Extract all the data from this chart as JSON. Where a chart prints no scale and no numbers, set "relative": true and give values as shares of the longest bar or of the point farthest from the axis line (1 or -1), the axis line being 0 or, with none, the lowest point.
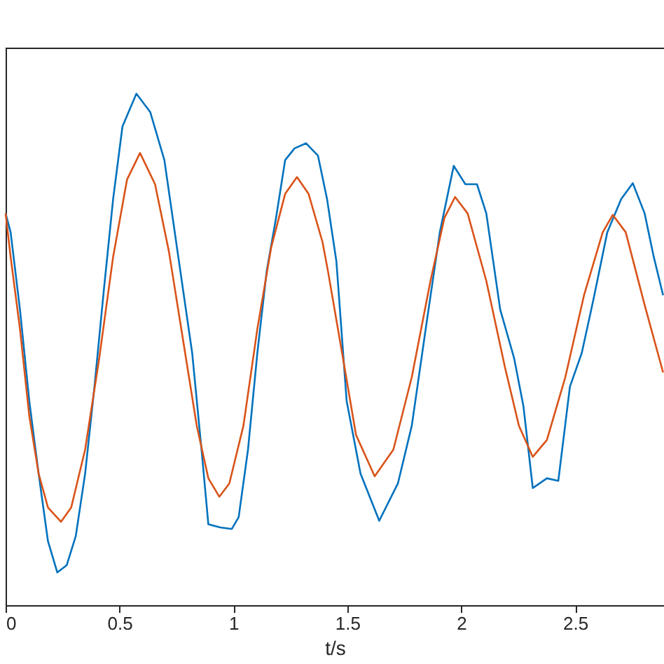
{
  "chart_data": {
    "type": "line",
    "xlabel": "t/s",
    "relative": true,
    "xlim": [
      0,
      2.89
    ],
    "xticks": [
      0,
      0.5,
      1,
      1.5,
      2,
      2.5
    ],
    "line_style": "solid",
    "marker": "none",
    "series": [
      {
        "color": "#0072bd",
        "x": [
          0,
          0.022,
          0.063,
          0.104,
          0.145,
          0.186,
          0.227,
          0.268,
          0.308,
          0.349,
          0.39,
          0.431,
          0.472,
          0.513,
          0.574,
          0.635,
          0.697,
          0.758,
          0.819,
          0.86,
          0.89,
          0.942,
          0.993,
          1.023,
          1.064,
          1.105,
          1.146,
          1.187,
          1.227,
          1.268,
          1.319,
          1.371,
          1.411,
          1.452,
          1.497,
          1.558,
          1.64,
          1.722,
          1.783,
          1.844,
          1.906,
          1.967,
          2.018,
          2.069,
          2.11,
          2.171,
          2.232,
          2.273,
          2.314,
          2.376,
          2.426,
          2.477,
          2.529,
          2.58,
          2.641,
          2.702,
          2.753,
          2.805,
          2.845,
          2.886
        ],
        "values": [
          0.766,
          0.729,
          0.578,
          0.399,
          0.257,
          0.125,
          0.064,
          0.078,
          0.135,
          0.257,
          0.427,
          0.615,
          0.794,
          0.936,
          1.0,
          0.964,
          0.87,
          0.681,
          0.493,
          0.304,
          0.158,
          0.152,
          0.149,
          0.172,
          0.304,
          0.493,
          0.653,
          0.757,
          0.87,
          0.893,
          0.903,
          0.879,
          0.794,
          0.672,
          0.399,
          0.257,
          0.165,
          0.238,
          0.351,
          0.54,
          0.729,
          0.859,
          0.823,
          0.823,
          0.766,
          0.578,
          0.483,
          0.389,
          0.229,
          0.248,
          0.243,
          0.427,
          0.493,
          0.597,
          0.729,
          0.794,
          0.825,
          0.766,
          0.681,
          0.606
        ]
      },
      {
        "color": "#d95319",
        "x": [
          0,
          0.022,
          0.063,
          0.104,
          0.145,
          0.186,
          0.243,
          0.288,
          0.349,
          0.411,
          0.472,
          0.533,
          0.59,
          0.656,
          0.717,
          0.778,
          0.839,
          0.89,
          0.938,
          0.982,
          1.044,
          1.105,
          1.166,
          1.227,
          1.279,
          1.33,
          1.391,
          1.415,
          1.477,
          1.538,
          1.62,
          1.702,
          1.783,
          1.865,
          1.926,
          1.973,
          2.028,
          2.11,
          2.192,
          2.253,
          2.314,
          2.376,
          2.457,
          2.539,
          2.621,
          2.665,
          2.722,
          2.805,
          2.886
        ],
        "values": [
          0.766,
          0.681,
          0.54,
          0.37,
          0.257,
          0.191,
          0.163,
          0.191,
          0.304,
          0.483,
          0.681,
          0.832,
          0.884,
          0.823,
          0.691,
          0.521,
          0.351,
          0.248,
          0.212,
          0.238,
          0.351,
          0.54,
          0.7,
          0.804,
          0.837,
          0.804,
          0.71,
          0.653,
          0.493,
          0.333,
          0.252,
          0.304,
          0.446,
          0.634,
          0.757,
          0.798,
          0.766,
          0.634,
          0.465,
          0.351,
          0.29,
          0.323,
          0.446,
          0.606,
          0.729,
          0.763,
          0.729,
          0.587,
          0.455
        ]
      }
    ]
  }
}
